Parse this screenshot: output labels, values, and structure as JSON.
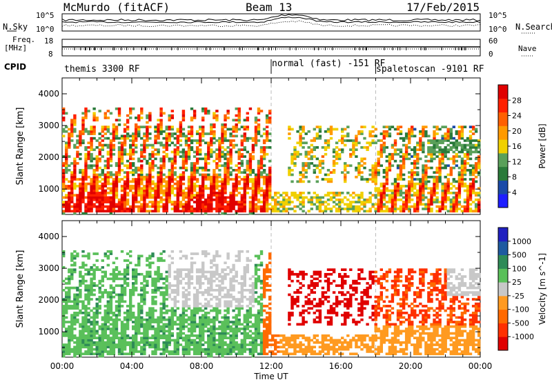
{
  "header": {
    "station": "McMurdo (fitACF)",
    "beam": "Beam 13",
    "date": "17/Feb/2015"
  },
  "noise_panel": {
    "left_label": "N.Sky",
    "right_label": "N.Search",
    "left_ticks": [
      "10^5",
      "10^0"
    ],
    "right_ticks": [
      "10^5",
      "10^0"
    ]
  },
  "freq_panel": {
    "left_label_1": "Freq.",
    "left_label_2": "[MHz]",
    "right_label": "Nave",
    "left_ticks": [
      "18",
      "8"
    ],
    "right_ticks": [
      "60",
      "0"
    ]
  },
  "cpid": {
    "label": "CPID",
    "segments": [
      {
        "name": "themis 3300 RF",
        "start": "00:00",
        "end": "12:00"
      },
      {
        "name": "normal (fast) -151 RF",
        "start": "12:00",
        "end": "18:00"
      },
      {
        "name": "spaletoscan -9101 RF",
        "start": "18:00",
        "end": "00:00"
      }
    ]
  },
  "xaxis": {
    "label": "Time UT",
    "ticks": [
      "00:00",
      "04:00",
      "08:00",
      "12:00",
      "16:00",
      "20:00",
      "00:00"
    ]
  },
  "colors": {
    "power_scale": [
      "#1e1eff",
      "#1a4aa8",
      "#2a7a3a",
      "#5aa05a",
      "#f0d000",
      "#ff9a00",
      "#ff6000",
      "#ff2000",
      "#e00000"
    ],
    "velocity_scale": [
      "#e00000",
      "#ff3000",
      "#ff6a00",
      "#ff9a20",
      "#c8c8c8",
      "#5ac05a",
      "#2e8b57",
      "#1e5aa0",
      "#2020c0"
    ]
  },
  "chart_data": [
    {
      "type": "heatmap",
      "title": "Power",
      "ylabel": "Slant Range [km]",
      "ylim": [
        200,
        4500
      ],
      "yticks": [
        1000,
        2000,
        3000,
        4000
      ],
      "xlim": [
        "00:00",
        "24:00"
      ],
      "colorbar": {
        "label": "Power [dB]",
        "range": [
          0,
          32
        ],
        "ticks": [
          4,
          8,
          12,
          16,
          20,
          24,
          28
        ]
      }
    },
    {
      "type": "heatmap",
      "title": "Velocity",
      "ylabel": "Slant Range [km]",
      "ylim": [
        200,
        4500
      ],
      "yticks": [
        1000,
        2000,
        3000,
        4000
      ],
      "xlim": [
        "00:00",
        "24:00"
      ],
      "colorbar": {
        "label": "Velocity [m s^-1]",
        "ticks": [
          -1000,
          -500,
          -100,
          -25,
          25,
          100,
          500,
          1000
        ],
        "tick_labels": [
          "1000",
          "500",
          "100",
          "25",
          "-25",
          "-100",
          "-500",
          "-1000"
        ]
      }
    }
  ]
}
